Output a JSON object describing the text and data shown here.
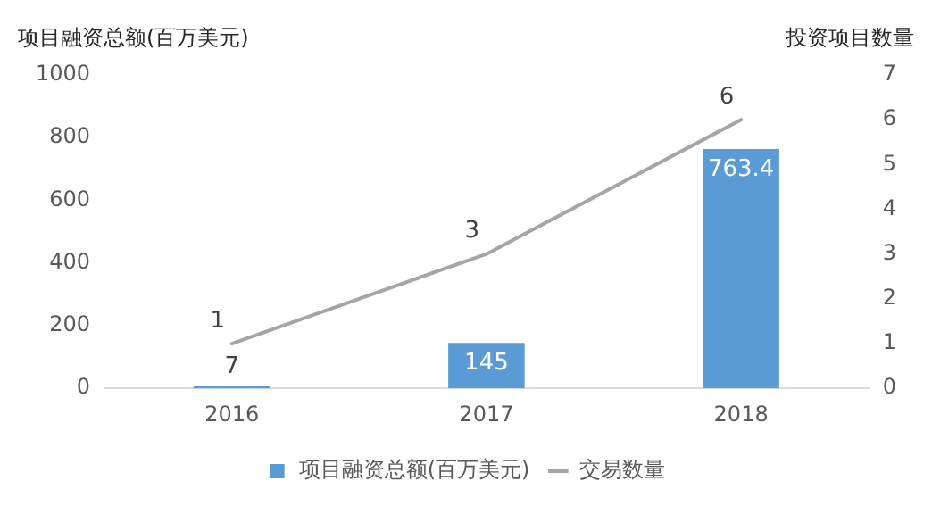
{
  "chart_data": {
    "type": "bar",
    "categories": [
      "2016",
      "2017",
      "2018"
    ],
    "ylabel": "项目融资总额(百万美元)",
    "y2label": "投资项目数量",
    "series": [
      {
        "name": "项目融资总额(百万美元)",
        "color": "#5b9bd5",
        "values": [
          7,
          145,
          763.4
        ]
      },
      {
        "name": "交易数量",
        "type": "line",
        "axis": "y2",
        "color": "#a5a5a5",
        "values": [
          1,
          3,
          6
        ]
      }
    ],
    "ylim": [
      0,
      1000
    ],
    "yticks": [
      0,
      200,
      400,
      600,
      800,
      1000
    ],
    "y2lim": [
      0,
      7
    ],
    "y2ticks": [
      0,
      1,
      2,
      3,
      4,
      5,
      6,
      7
    ],
    "data_labels": true,
    "legend": "bottom",
    "grid": false,
    "marker": "none",
    "line_style": "solid"
  }
}
